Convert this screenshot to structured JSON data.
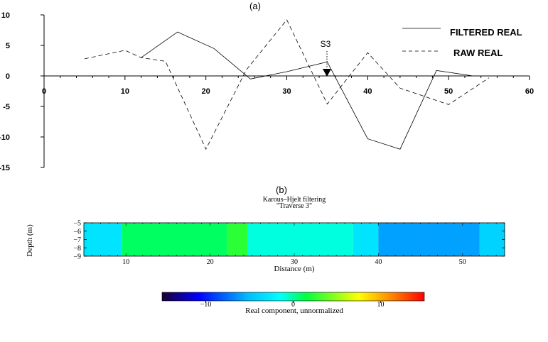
{
  "panel_a": {
    "label": "(a)",
    "marker": "S3",
    "legend": [
      "FILTERED REAL",
      "RAW REAL"
    ]
  },
  "panel_b": {
    "label": "(b)",
    "title": "Karous–Hjelt filtering",
    "subtitle": "\"Traverse 3\"",
    "xlabel": "Distance (m)",
    "ylabel": "Depth (m)",
    "colorbar_label": "Real component, unnormalized"
  },
  "chart_data": [
    {
      "type": "line",
      "title": "(a)",
      "xlim": [
        0,
        60
      ],
      "ylim": [
        -15,
        10
      ],
      "x_ticks": [
        0,
        10,
        20,
        30,
        40,
        50,
        60
      ],
      "y_ticks": [
        10,
        5,
        0,
        -5,
        -10,
        -15
      ],
      "legend_position": "top-right",
      "grid": false,
      "annotations": [
        {
          "text": "S3",
          "x": 35,
          "y": 2
        }
      ],
      "series": [
        {
          "name": "FILTERED REAL",
          "style": "solid",
          "x": [
            12,
            16.5,
            21,
            25.5,
            30,
            35,
            40,
            44,
            48.5,
            53
          ],
          "y": [
            3,
            7.2,
            4.5,
            -0.5,
            0.7,
            2.3,
            -10.3,
            -12,
            0.9,
            0
          ]
        },
        {
          "name": "RAW REAL",
          "style": "dashed",
          "x": [
            5,
            10,
            12,
            15,
            20,
            25,
            30,
            35,
            40,
            44,
            50,
            55
          ],
          "y": [
            2.8,
            4.2,
            3,
            2.4,
            -12,
            1,
            9.2,
            -4.6,
            3.8,
            -2,
            -4.7,
            -0.3
          ]
        }
      ]
    },
    {
      "type": "heatmap",
      "title": "Karous–Hjelt filtering",
      "subtitle": "\"Traverse 3\"",
      "xlabel": "Distance (m)",
      "ylabel": "Depth (m)",
      "xlim": [
        5,
        55
      ],
      "ylim": [
        -9,
        -5
      ],
      "x_ticks": [
        10,
        20,
        30,
        40,
        50
      ],
      "y_ticks": [
        -5,
        -6,
        -7,
        -8,
        -9
      ],
      "zones": [
        {
          "x": [
            5,
            9.5
          ],
          "value": -3
        },
        {
          "x": [
            9.5,
            22
          ],
          "value": 1
        },
        {
          "x": [
            22,
            24.5
          ],
          "value": 2.5
        },
        {
          "x": [
            24.5,
            37
          ],
          "value": -1
        },
        {
          "x": [
            37,
            40
          ],
          "value": -3
        },
        {
          "x": [
            40,
            52
          ],
          "value": -6
        },
        {
          "x": [
            52,
            55
          ],
          "value": -4
        }
      ],
      "colorbar": {
        "range": [
          -15,
          15
        ],
        "ticks": [
          -10,
          0,
          10
        ],
        "label": "Real component, unnormalized",
        "colors": [
          "#1a0033",
          "#0000ff",
          "#00bfff",
          "#00ffff",
          "#00ff40",
          "#ffff00",
          "#ff8000",
          "#ff0000"
        ]
      }
    }
  ]
}
